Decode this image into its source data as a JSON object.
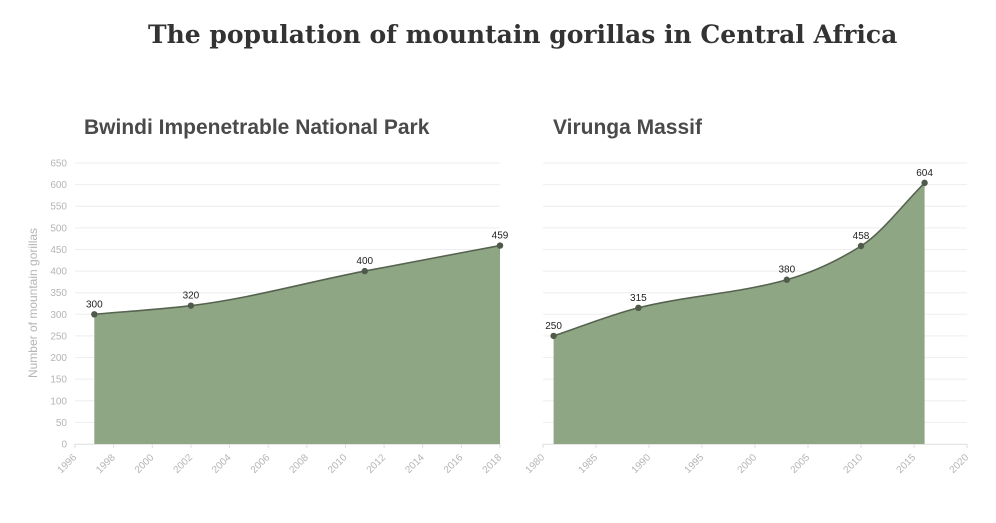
{
  "title": "The population of mountain gorillas in Central Africa",
  "colors": {
    "area": "#8fa685",
    "line": "#56634f",
    "point": "#4f5a4a",
    "grid": "#eeeeee",
    "tick": "#b5b5b5"
  },
  "chart_data": [
    {
      "type": "area",
      "title": "Bwindi Impenetrable National Park",
      "ylabel": "Number of mountain gorillas",
      "xlim": [
        1996,
        2018
      ],
      "ylim": [
        0,
        650
      ],
      "xticks": [
        1996,
        1998,
        2000,
        2002,
        2004,
        2006,
        2008,
        2010,
        2012,
        2014,
        2016,
        2018
      ],
      "yticks": [
        0,
        50,
        100,
        150,
        200,
        250,
        300,
        350,
        400,
        450,
        500,
        550,
        600,
        650
      ],
      "x": [
        1997,
        2002,
        2011,
        2018
      ],
      "y": [
        300,
        320,
        400,
        459
      ],
      "grid": true
    },
    {
      "type": "area",
      "title": "Virunga Massif",
      "xlim": [
        1980,
        2020
      ],
      "ylim": [
        0,
        650
      ],
      "xticks": [
        1980,
        1985,
        1990,
        1995,
        2000,
        2005,
        2010,
        2015,
        2020
      ],
      "x": [
        1981,
        1989,
        2003,
        2010,
        2016
      ],
      "y": [
        250,
        315,
        380,
        458,
        604
      ],
      "grid": true
    }
  ]
}
